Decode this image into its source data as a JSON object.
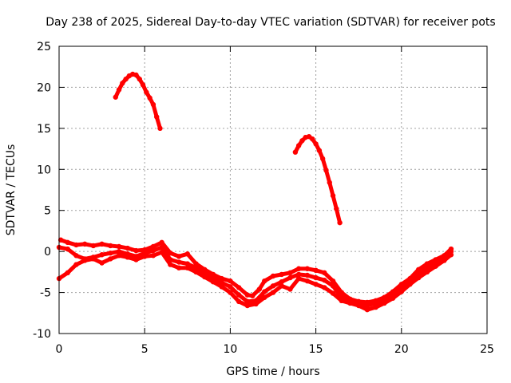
{
  "chart_data": {
    "type": "scatter",
    "title": "Day 238 of 2025, Sidereal Day-to-day VTEC variation (SDTVAR) for receiver pots",
    "xlabel": "GPS time / hours",
    "ylabel": "SDTVAR / TECUs",
    "xlim": [
      0,
      25
    ],
    "ylim": [
      -10,
      25
    ],
    "xticks": [
      0,
      5,
      10,
      15,
      20,
      25
    ],
    "yticks": [
      -10,
      -5,
      0,
      5,
      10,
      15,
      20,
      25
    ],
    "grid": true,
    "legend": "none",
    "series": [
      {
        "name": "arc-early-high",
        "color": "#ff0000",
        "points": [
          [
            3.3,
            18.8
          ],
          [
            3.5,
            19.7
          ],
          [
            3.7,
            20.5
          ],
          [
            3.9,
            21.0
          ],
          [
            4.1,
            21.4
          ],
          [
            4.3,
            21.6
          ],
          [
            4.5,
            21.5
          ],
          [
            4.7,
            21.0
          ],
          [
            4.9,
            20.3
          ],
          [
            5.1,
            19.4
          ],
          [
            5.3,
            18.7
          ],
          [
            5.5,
            17.9
          ],
          [
            5.7,
            16.4
          ],
          [
            5.9,
            15.0
          ]
        ]
      },
      {
        "name": "arc-midday-high",
        "color": "#ff0000",
        "points": [
          [
            13.8,
            12.1
          ],
          [
            14.0,
            12.9
          ],
          [
            14.2,
            13.5
          ],
          [
            14.4,
            13.9
          ],
          [
            14.6,
            14.0
          ],
          [
            14.8,
            13.7
          ],
          [
            15.0,
            13.1
          ],
          [
            15.2,
            12.3
          ],
          [
            15.4,
            11.3
          ],
          [
            15.6,
            9.9
          ],
          [
            15.8,
            8.4
          ],
          [
            16.0,
            6.8
          ],
          [
            16.2,
            5.2
          ],
          [
            16.4,
            3.5
          ]
        ]
      },
      {
        "name": "band-upper",
        "color": "#ff0000",
        "points": [
          [
            0.1,
            1.4
          ],
          [
            0.5,
            1.1
          ],
          [
            1.0,
            0.8
          ],
          [
            1.5,
            0.9
          ],
          [
            2.0,
            0.7
          ],
          [
            2.5,
            0.9
          ],
          [
            3.0,
            0.7
          ],
          [
            3.5,
            0.6
          ],
          [
            4.0,
            0.4
          ],
          [
            4.5,
            0.1
          ],
          [
            5.0,
            0.2
          ],
          [
            5.5,
            0.6
          ],
          [
            6.0,
            1.1
          ],
          [
            6.5,
            -0.2
          ],
          [
            7.0,
            -0.6
          ],
          [
            7.5,
            -0.3
          ],
          [
            8.0,
            -1.5
          ],
          [
            8.5,
            -2.2
          ],
          [
            9.0,
            -2.8
          ],
          [
            9.5,
            -3.3
          ],
          [
            10.0,
            -3.6
          ],
          [
            10.5,
            -4.4
          ],
          [
            11.0,
            -5.3
          ],
          [
            11.3,
            -5.4
          ],
          [
            11.7,
            -4.6
          ],
          [
            12.0,
            -3.6
          ],
          [
            12.5,
            -3.0
          ],
          [
            13.0,
            -2.8
          ],
          [
            13.5,
            -2.6
          ],
          [
            14.0,
            -2.1
          ],
          [
            14.5,
            -2.1
          ],
          [
            15.0,
            -2.3
          ],
          [
            15.5,
            -2.6
          ],
          [
            16.0,
            -3.6
          ],
          [
            16.5,
            -5.0
          ],
          [
            17.0,
            -5.8
          ],
          [
            17.5,
            -6.1
          ],
          [
            18.0,
            -6.2
          ],
          [
            18.5,
            -6.0
          ],
          [
            19.0,
            -5.6
          ],
          [
            19.5,
            -4.9
          ],
          [
            20.0,
            -4.0
          ],
          [
            20.5,
            -3.3
          ],
          [
            21.0,
            -2.2
          ],
          [
            21.5,
            -1.5
          ],
          [
            22.0,
            -1.0
          ],
          [
            22.5,
            -0.5
          ],
          [
            22.9,
            0.3
          ]
        ]
      },
      {
        "name": "band-middle",
        "color": "#ff0000",
        "points": [
          [
            0.0,
            0.5
          ],
          [
            0.5,
            0.3
          ],
          [
            1.0,
            -0.5
          ],
          [
            1.5,
            -0.9
          ],
          [
            2.0,
            -0.7
          ],
          [
            2.5,
            -0.4
          ],
          [
            3.0,
            -0.2
          ],
          [
            3.5,
            0.0
          ],
          [
            4.0,
            -0.3
          ],
          [
            4.5,
            -0.6
          ],
          [
            5.0,
            -0.2
          ],
          [
            5.5,
            0.1
          ],
          [
            6.0,
            0.5
          ],
          [
            6.5,
            -1.0
          ],
          [
            7.0,
            -1.3
          ],
          [
            7.5,
            -1.5
          ],
          [
            8.0,
            -2.0
          ],
          [
            8.5,
            -2.6
          ],
          [
            9.0,
            -3.2
          ],
          [
            9.5,
            -3.8
          ],
          [
            10.0,
            -4.3
          ],
          [
            10.5,
            -5.3
          ],
          [
            11.0,
            -6.1
          ],
          [
            11.5,
            -6.0
          ],
          [
            12.0,
            -4.9
          ],
          [
            12.5,
            -4.2
          ],
          [
            13.0,
            -3.7
          ],
          [
            13.5,
            -3.2
          ],
          [
            14.0,
            -2.8
          ],
          [
            14.5,
            -2.9
          ],
          [
            15.0,
            -3.2
          ],
          [
            15.5,
            -3.5
          ],
          [
            16.0,
            -4.2
          ],
          [
            16.5,
            -5.6
          ],
          [
            17.0,
            -6.1
          ],
          [
            17.5,
            -6.4
          ],
          [
            18.0,
            -6.6
          ],
          [
            18.5,
            -6.3
          ],
          [
            19.0,
            -5.9
          ],
          [
            19.5,
            -5.2
          ],
          [
            20.0,
            -4.4
          ],
          [
            20.5,
            -3.6
          ],
          [
            21.0,
            -2.8
          ],
          [
            21.5,
            -2.0
          ],
          [
            22.0,
            -1.3
          ],
          [
            22.5,
            -0.7
          ],
          [
            22.9,
            0.0
          ]
        ]
      },
      {
        "name": "band-lower",
        "color": "#ff0000",
        "points": [
          [
            0.0,
            -3.3
          ],
          [
            0.5,
            -2.6
          ],
          [
            1.0,
            -1.6
          ],
          [
            1.5,
            -1.1
          ],
          [
            2.0,
            -0.9
          ],
          [
            2.5,
            -1.4
          ],
          [
            3.0,
            -0.9
          ],
          [
            3.5,
            -0.5
          ],
          [
            4.0,
            -0.7
          ],
          [
            4.5,
            -1.0
          ],
          [
            5.0,
            -0.6
          ],
          [
            5.5,
            -0.5
          ],
          [
            6.0,
            -0.1
          ],
          [
            6.5,
            -1.6
          ],
          [
            7.0,
            -2.0
          ],
          [
            7.5,
            -2.0
          ],
          [
            8.0,
            -2.5
          ],
          [
            8.5,
            -3.1
          ],
          [
            9.0,
            -3.7
          ],
          [
            9.5,
            -4.3
          ],
          [
            10.0,
            -5.0
          ],
          [
            10.5,
            -6.1
          ],
          [
            11.0,
            -6.6
          ],
          [
            11.5,
            -6.4
          ],
          [
            12.0,
            -5.6
          ],
          [
            12.5,
            -5.0
          ],
          [
            13.0,
            -4.2
          ],
          [
            13.5,
            -4.6
          ],
          [
            14.0,
            -3.3
          ],
          [
            14.5,
            -3.6
          ],
          [
            15.0,
            -4.0
          ],
          [
            15.5,
            -4.4
          ],
          [
            16.0,
            -5.1
          ],
          [
            16.5,
            -6.0
          ],
          [
            17.0,
            -6.3
          ],
          [
            17.5,
            -6.6
          ],
          [
            18.0,
            -7.1
          ],
          [
            18.5,
            -6.8
          ],
          [
            19.0,
            -6.3
          ],
          [
            19.5,
            -5.7
          ],
          [
            20.0,
            -4.9
          ],
          [
            20.5,
            -4.0
          ],
          [
            21.0,
            -3.2
          ],
          [
            21.5,
            -2.5
          ],
          [
            22.0,
            -1.8
          ],
          [
            22.5,
            -1.1
          ],
          [
            22.9,
            -0.4
          ]
        ]
      }
    ]
  }
}
